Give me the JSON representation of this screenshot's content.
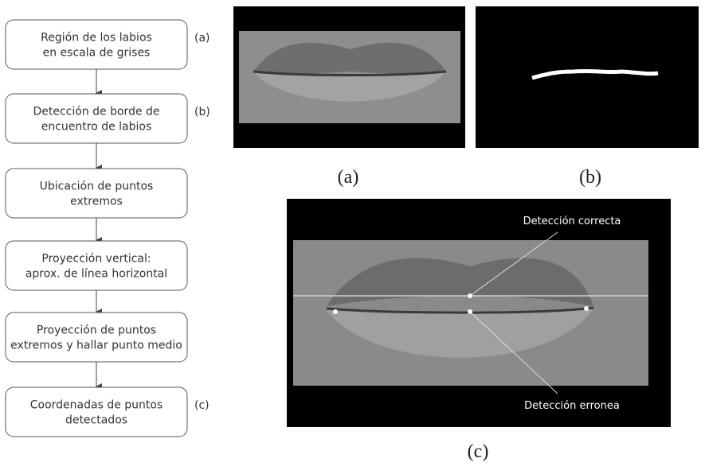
{
  "flowchart": {
    "steps": [
      {
        "lines": [
          "Región de los labios",
          "en escala de grises"
        ],
        "tag": "(a)"
      },
      {
        "lines": [
          "Detección de borde de",
          "encuentro de labios"
        ],
        "tag": "(b)"
      },
      {
        "lines": [
          "Ubicación de puntos",
          "extremos"
        ]
      },
      {
        "lines": [
          "Proyección vertical:",
          "aprox. de línea horizontal"
        ]
      },
      {
        "lines": [
          "Proyección de puntos",
          "extremos y hallar punto medio"
        ]
      },
      {
        "lines": [
          "Coordenadas de puntos",
          "detectados"
        ],
        "tag": "(c)"
      }
    ]
  },
  "panels": {
    "a": {
      "caption": "(a)"
    },
    "b": {
      "caption": "(b)"
    },
    "c": {
      "caption": "(c)",
      "annotations": [
        "Detección correcta",
        "Detección erronea"
      ]
    }
  }
}
